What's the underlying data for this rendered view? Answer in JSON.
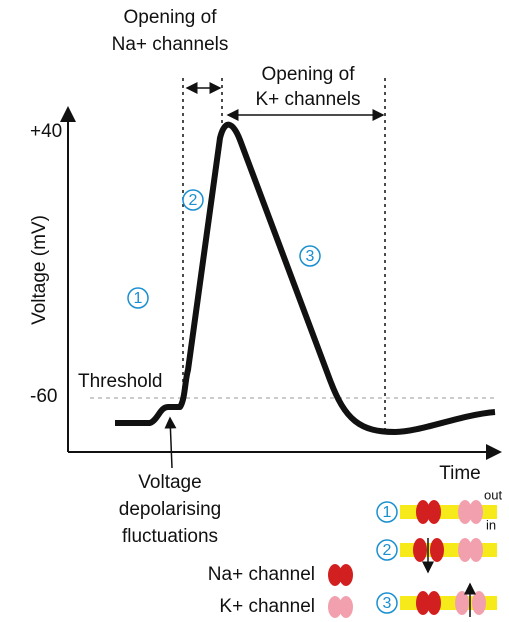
{
  "y_axis": {
    "label": "Voltage (mV)",
    "ticks": [
      "+40",
      "-60"
    ]
  },
  "x_axis": {
    "label": "Time"
  },
  "threshold": "Threshold",
  "annotations": {
    "na_opening": [
      "Opening of",
      "Na+ channels"
    ],
    "k_opening": [
      "Opening of",
      "K+ channels"
    ],
    "fluctuations": [
      "Voltage",
      "depolarising",
      "fluctuations"
    ]
  },
  "phases": [
    "1",
    "2",
    "3"
  ],
  "legend": {
    "na": "Na+ channel",
    "k": "K+ channel"
  },
  "membrane": {
    "out": "out",
    "in": "in"
  }
}
